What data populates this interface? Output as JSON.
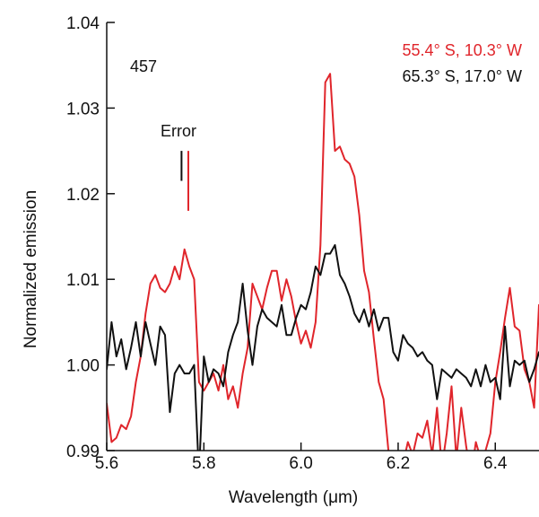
{
  "chart_data": {
    "type": "line",
    "title": "",
    "panel_label": "457",
    "xlabel": "Wavelength (μm)",
    "ylabel": "Normalized emission",
    "xlim": [
      5.6,
      6.49
    ],
    "ylim": [
      0.99,
      1.04
    ],
    "x_ticks": [
      5.6,
      5.8,
      6.0,
      6.2,
      6.4
    ],
    "x_tick_labels": [
      "5.6",
      "5.8",
      "6.0",
      "6.2",
      "6.4"
    ],
    "y_ticks": [
      0.99,
      1.0,
      1.01,
      1.02,
      1.03,
      1.04
    ],
    "y_tick_labels": [
      "0.99",
      "1.00",
      "1.01",
      "1.02",
      "1.03",
      "1.04"
    ],
    "grid": false,
    "legend_placement": "top-right",
    "series": [
      {
        "name": "55.4° S, 10.3° W",
        "color": "#e0252b",
        "x": [
          5.6,
          5.61,
          5.62,
          5.63,
          5.64,
          5.65,
          5.66,
          5.67,
          5.68,
          5.69,
          5.7,
          5.71,
          5.72,
          5.73,
          5.74,
          5.75,
          5.76,
          5.77,
          5.78,
          5.79,
          5.8,
          5.81,
          5.82,
          5.83,
          5.84,
          5.85,
          5.86,
          5.87,
          5.88,
          5.89,
          5.9,
          5.91,
          5.92,
          5.93,
          5.94,
          5.95,
          5.96,
          5.97,
          5.98,
          5.99,
          6.0,
          6.01,
          6.02,
          6.03,
          6.04,
          6.05,
          6.06,
          6.07,
          6.08,
          6.09,
          6.1,
          6.11,
          6.12,
          6.13,
          6.14,
          6.15,
          6.16,
          6.17,
          6.18,
          6.19,
          6.2,
          6.21,
          6.22,
          6.23,
          6.24,
          6.25,
          6.26,
          6.27,
          6.28,
          6.29,
          6.3,
          6.31,
          6.32,
          6.33,
          6.34,
          6.35,
          6.36,
          6.37,
          6.38,
          6.39,
          6.4,
          6.41,
          6.42,
          6.43,
          6.44,
          6.45,
          6.46,
          6.47,
          6.48,
          6.49
        ],
        "values": [
          0.9955,
          0.991,
          0.9915,
          0.993,
          0.9925,
          0.994,
          0.998,
          1.001,
          1.006,
          1.0095,
          1.0105,
          1.009,
          1.0085,
          1.0095,
          1.0115,
          1.01,
          1.0135,
          1.0115,
          1.01,
          0.998,
          0.997,
          0.998,
          0.999,
          0.997,
          1.0,
          0.996,
          0.9975,
          0.995,
          0.999,
          1.002,
          1.0095,
          1.008,
          1.0065,
          1.009,
          1.011,
          1.011,
          1.0075,
          1.01,
          1.008,
          1.005,
          1.0025,
          1.004,
          1.002,
          1.005,
          1.014,
          1.033,
          1.034,
          1.025,
          1.0255,
          1.024,
          1.0235,
          1.022,
          1.0175,
          1.011,
          1.0085,
          1.003,
          0.998,
          0.996,
          0.99,
          0.988,
          0.987,
          0.9885,
          0.991,
          0.9895,
          0.992,
          0.9915,
          0.9935,
          0.9895,
          0.995,
          0.988,
          0.992,
          0.9975,
          0.989,
          0.995,
          0.9905,
          0.987,
          0.991,
          0.989,
          0.99,
          0.992,
          0.998,
          1.0015,
          1.0055,
          1.009,
          1.0045,
          1.004,
          0.9995,
          0.998,
          0.995,
          1.007
        ]
      },
      {
        "name": "65.3° S, 17.0° W",
        "color": "#111111",
        "x": [
          5.6,
          5.61,
          5.62,
          5.63,
          5.64,
          5.65,
          5.66,
          5.67,
          5.68,
          5.69,
          5.7,
          5.71,
          5.72,
          5.73,
          5.74,
          5.75,
          5.76,
          5.77,
          5.78,
          5.79,
          5.8,
          5.81,
          5.82,
          5.83,
          5.84,
          5.85,
          5.86,
          5.87,
          5.88,
          5.89,
          5.9,
          5.91,
          5.92,
          5.93,
          5.94,
          5.95,
          5.96,
          5.97,
          5.98,
          5.99,
          6.0,
          6.01,
          6.02,
          6.03,
          6.04,
          6.05,
          6.06,
          6.07,
          6.08,
          6.09,
          6.1,
          6.11,
          6.12,
          6.13,
          6.14,
          6.15,
          6.16,
          6.17,
          6.18,
          6.19,
          6.2,
          6.21,
          6.22,
          6.23,
          6.24,
          6.25,
          6.26,
          6.27,
          6.28,
          6.29,
          6.3,
          6.31,
          6.32,
          6.33,
          6.34,
          6.35,
          6.36,
          6.37,
          6.38,
          6.39,
          6.4,
          6.41,
          6.42,
          6.43,
          6.44,
          6.45,
          6.46,
          6.47,
          6.48,
          6.49
        ],
        "values": [
          0.9995,
          1.005,
          1.001,
          1.003,
          0.9995,
          1.002,
          1.005,
          1.001,
          1.005,
          1.0025,
          1.0,
          1.0045,
          1.0035,
          0.9945,
          0.999,
          1.0,
          0.999,
          0.999,
          1.0,
          0.987,
          1.001,
          0.998,
          0.9995,
          0.999,
          0.9975,
          1.0015,
          1.0035,
          1.005,
          1.0095,
          1.004,
          1.0,
          1.0045,
          1.0065,
          1.0055,
          1.005,
          1.0045,
          1.007,
          1.0035,
          1.0035,
          1.0055,
          1.007,
          1.0065,
          1.0085,
          1.0115,
          1.0105,
          1.013,
          1.013,
          1.014,
          1.0105,
          1.0095,
          1.008,
          1.006,
          1.005,
          1.0065,
          1.0045,
          1.0065,
          1.004,
          1.0055,
          1.0055,
          1.0015,
          1.0005,
          1.0035,
          1.0025,
          1.002,
          1.001,
          1.0015,
          1.0005,
          1.0,
          0.996,
          0.9995,
          0.999,
          0.9985,
          0.9995,
          0.999,
          0.9985,
          0.9975,
          0.9995,
          0.9975,
          1.0,
          0.998,
          0.9985,
          0.996,
          1.0045,
          0.9975,
          1.0005,
          1.0,
          1.0005,
          0.998,
          0.9995,
          1.0015
        ]
      }
    ],
    "annotations": [
      {
        "label": "Error",
        "bars": [
          {
            "x": 5.754,
            "y_low": 1.0215,
            "y_high": 1.025,
            "color": "#111111"
          },
          {
            "x": 5.768,
            "y_low": 1.018,
            "y_high": 1.025,
            "color": "#e0252b"
          }
        ]
      }
    ]
  }
}
